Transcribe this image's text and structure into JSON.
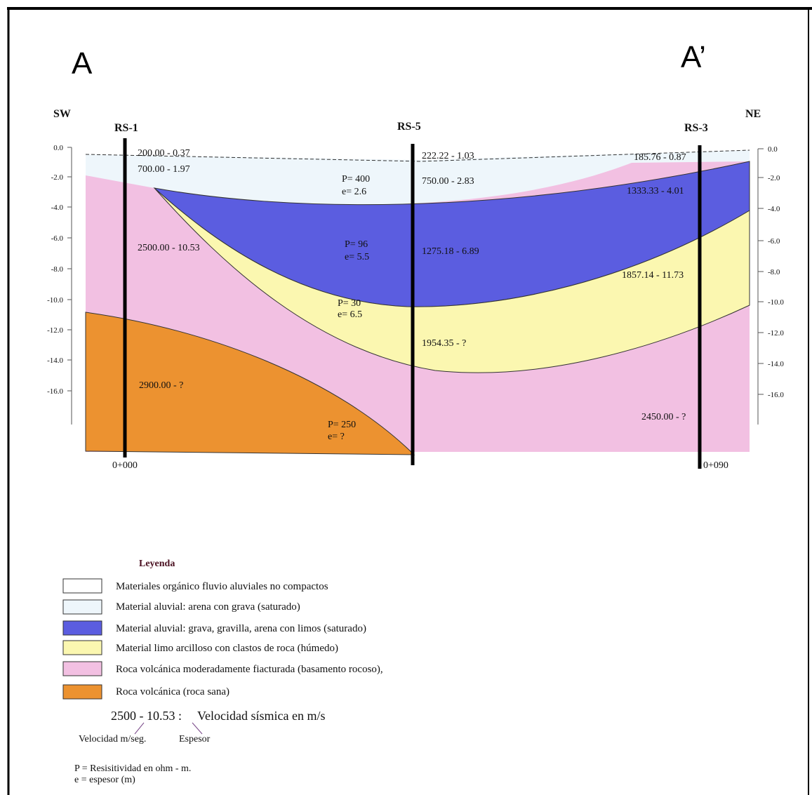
{
  "header": {
    "left_label": "A",
    "right_label": "A’"
  },
  "section": {
    "left_direction": "SW",
    "right_direction": "NE",
    "boreholes": [
      "RS-1",
      "RS-5",
      "RS-3"
    ],
    "left_depth_ticks": [
      "0.0",
      "-2.0",
      "-4.0",
      "-6.0",
      "-8.0",
      "-10.0",
      "-12.0",
      "-14.0",
      "-16.0"
    ],
    "right_depth_ticks": [
      "0.0",
      "-2.0",
      "-4.0",
      "-6.0",
      "-8.0",
      "-10.0",
      "-12.0",
      "-14.0",
      "-16.0"
    ],
    "layer_labels": [
      "200.00 - 0.37",
      "700.00 - 1.97",
      "222.22 - 1.03",
      "185.76 - 0.87",
      "750.00 - 2.83",
      "1333.33 - 4.01",
      "2500.00 - 10.53",
      "1275.18 - 6.89",
      "1857.14 - 11.73",
      "1954.35 - ?",
      "2900.00 - ?",
      "2450.00 - ?"
    ],
    "resistivity_labels": [
      "P= 400",
      "e= 2.6",
      "P= 96",
      "e= 5.5",
      "P= 30",
      "e= 6.5",
      "P= 250",
      "e= ?"
    ],
    "chainages": [
      "0+000",
      "0+090"
    ]
  },
  "legend": {
    "title": "Leyenda",
    "items": [
      "Materiales orgánico fluvio aluviales no compactos",
      "Material aluvial: arena con grava (saturado)",
      "Material  aluvial: grava, gravilla, arena con limos (saturado)",
      "Material limo arcilloso con clastos de roca (húmedo)",
      "Roca volcánica moderadamente fiacturada (basamento rocoso),",
      "Roca volcánica (roca sana)"
    ],
    "velocity_example": "2500 - 10.53 :",
    "velocity_caption": "Velocidad sísmica en m/s",
    "velocity_note": "Velocidad m/seg.",
    "thickness_note": "Espesor",
    "notes": [
      "P = Resisitividad en ohm - m.",
      "e = espesor (m)"
    ]
  }
}
